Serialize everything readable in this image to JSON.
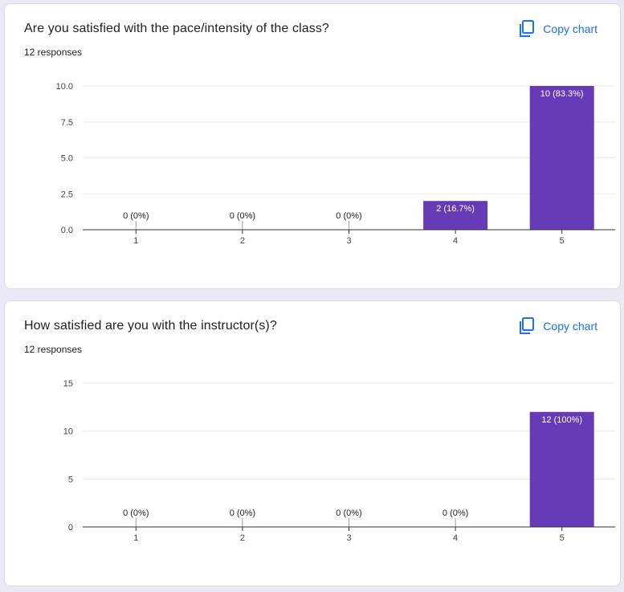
{
  "copy_label": "Copy chart",
  "copy_icon": "copy-icon",
  "bar_color": "#673ab7",
  "link_color": "#1a73e8",
  "questions": [
    {
      "title": "Are you satisfied with the pace/intensity of the class?",
      "responses": "12 responses"
    },
    {
      "title": "How satisfied are you with the instructor(s)?",
      "responses": "12 responses"
    }
  ],
  "chart_data": [
    {
      "type": "bar",
      "categories": [
        "1",
        "2",
        "3",
        "4",
        "5"
      ],
      "values": [
        0,
        0,
        0,
        2,
        10
      ],
      "data_labels": [
        "0 (0%)",
        "0 (0%)",
        "0 (0%)",
        "2 (16.7%)",
        "10 (83.3%)"
      ],
      "yticks": [
        "0.0",
        "2.5",
        "5.0",
        "7.5",
        "10.0"
      ],
      "ylim": [
        0,
        10
      ],
      "grid": true
    },
    {
      "type": "bar",
      "categories": [
        "1",
        "2",
        "3",
        "4",
        "5"
      ],
      "values": [
        0,
        0,
        0,
        0,
        12
      ],
      "data_labels": [
        "0 (0%)",
        "0 (0%)",
        "0 (0%)",
        "0 (0%)",
        "12 (100%)"
      ],
      "yticks": [
        "0",
        "5",
        "10",
        "15"
      ],
      "ylim": [
        0,
        15
      ],
      "grid": true
    }
  ]
}
